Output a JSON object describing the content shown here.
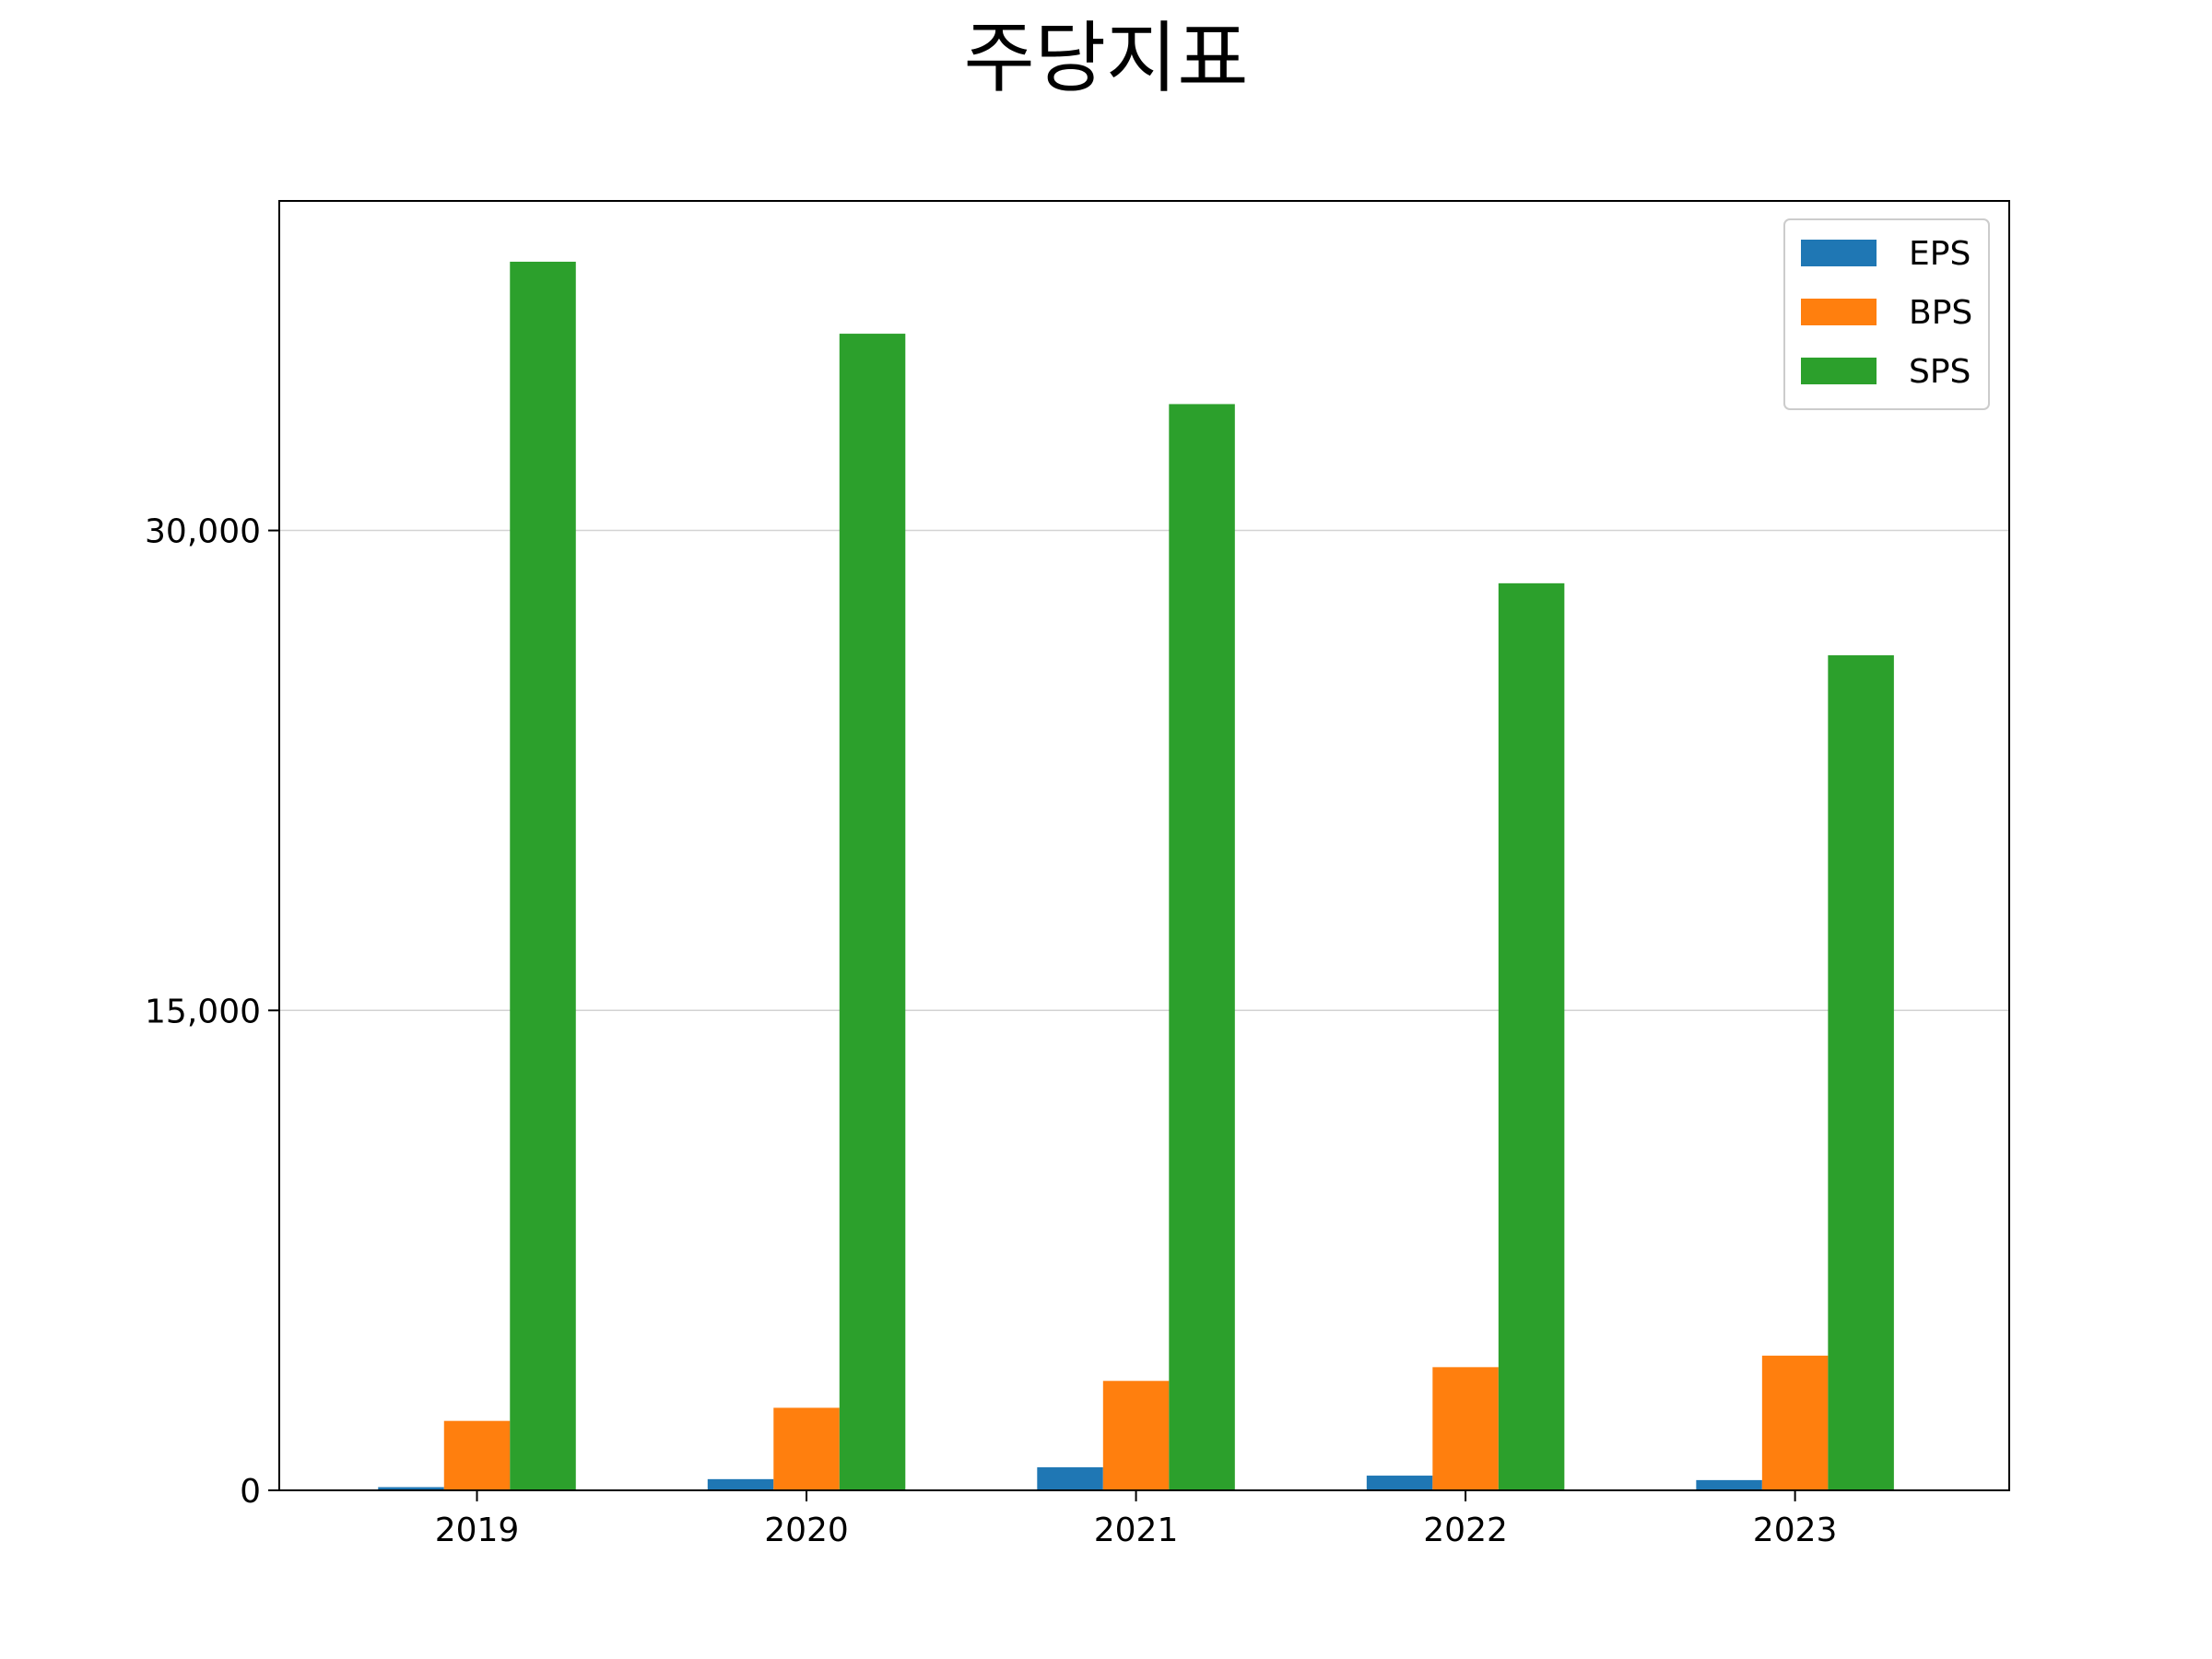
{
  "chart_data": {
    "type": "bar",
    "title": "주당지표",
    "xlabel": "",
    "ylabel": "",
    "categories": [
      "2019",
      "2020",
      "2021",
      "2022",
      "2023"
    ],
    "series": [
      {
        "name": "EPS",
        "color": "#1f77b4",
        "values": [
          100,
          350,
          720,
          460,
          320
        ]
      },
      {
        "name": "BPS",
        "color": "#ff7f0e",
        "values": [
          2170,
          2580,
          3420,
          3850,
          4210
        ]
      },
      {
        "name": "SPS",
        "color": "#2ca02c",
        "values": [
          38400,
          36150,
          33950,
          28350,
          26100
        ]
      }
    ],
    "ylim": [
      0,
      40300
    ],
    "yticks": [
      0,
      15000,
      30000
    ],
    "ytick_labels": [
      "0",
      "15,000",
      "30,000"
    ],
    "grid": {
      "y": true,
      "x": false
    },
    "legend_position": "upper right"
  }
}
